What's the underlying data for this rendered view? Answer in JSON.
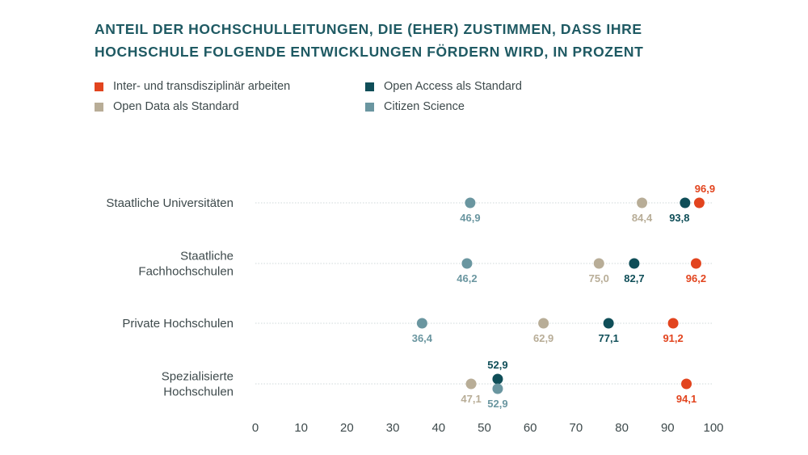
{
  "title": {
    "line1": "ANTEIL DER HOCHSCHULLEITUNGEN, DIE (EHER) ZUSTIMMEN, DASS IHRE",
    "line2": "HOCHSCHULE FOLGENDE ENTWICKLUNGEN FÖRDERN WIRD, IN PROZENT"
  },
  "colors": {
    "inter": "#e2441e",
    "open_access": "#0f4e58",
    "open_data": "#b8ad97",
    "citizen": "#6a96a0",
    "grid": "#cfd8da",
    "axis_text": "#3e4a4c"
  },
  "chart_data": {
    "type": "scatter",
    "title": "ANTEIL DER HOCHSCHULLEITUNGEN, DIE (EHER) ZUSTIMMEN, DASS IHRE HOCHSCHULE FOLGENDE ENTWICKLUNGEN FÖRDERN WIRD, IN PROZENT",
    "xlim": [
      0,
      100
    ],
    "xticks": [
      0,
      10,
      20,
      30,
      40,
      50,
      60,
      70,
      80,
      90,
      100
    ],
    "legend_position": "top-left",
    "categories": [
      [
        "Staatliche Universitäten"
      ],
      [
        "Staatliche",
        "Fachhochschulen"
      ],
      [
        "Private Hochschulen"
      ],
      [
        "Spezialisierte",
        "Hochschulen"
      ]
    ],
    "series": [
      {
        "name": "Inter- und transdisziplinär arbeiten",
        "color_key": "inter",
        "values": [
          96.9,
          96.2,
          91.2,
          94.1
        ],
        "labels": [
          "96,9",
          "96,2",
          "91,2",
          "94,1"
        ],
        "label_pos": [
          "above",
          "below",
          "below",
          "below"
        ]
      },
      {
        "name": "Open Access als Standard",
        "color_key": "open_access",
        "values": [
          93.8,
          82.7,
          77.1,
          52.9
        ],
        "labels": [
          "93,8",
          "82,7",
          "77,1",
          "52,9"
        ],
        "label_pos": [
          "below",
          "below",
          "below",
          "above"
        ]
      },
      {
        "name": "Open Data als Standard",
        "color_key": "open_data",
        "values": [
          84.4,
          75.0,
          62.9,
          47.1
        ],
        "labels": [
          "84,4",
          "75,0",
          "62,9",
          "47,1"
        ],
        "label_pos": [
          "below",
          "below",
          "below",
          "below"
        ]
      },
      {
        "name": "Citizen Science",
        "color_key": "citizen",
        "values": [
          46.9,
          46.2,
          36.4,
          52.9
        ],
        "labels": [
          "46,9",
          "46,2",
          "36,4",
          "52,9"
        ],
        "label_pos": [
          "below",
          "below",
          "below",
          "below"
        ]
      }
    ]
  }
}
